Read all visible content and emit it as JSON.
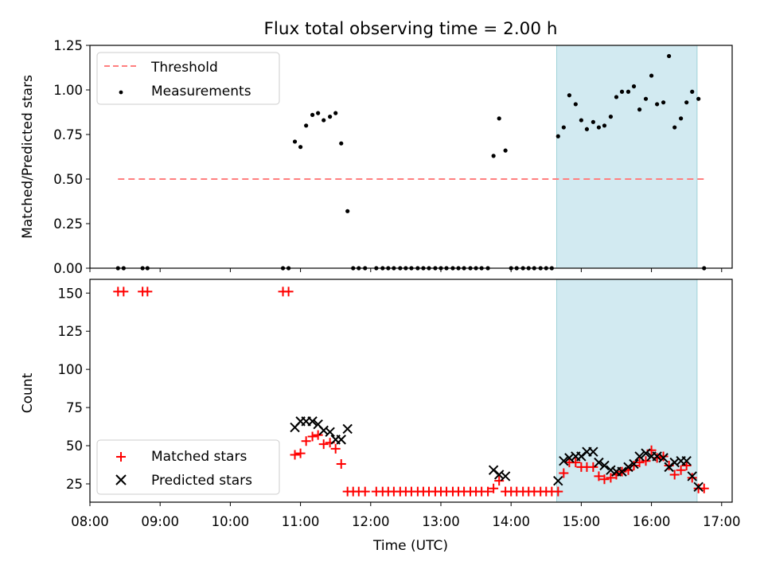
{
  "figure_title": "Flux total observing time = 2.00 h",
  "colors": {
    "threshold": "#ff7f7f",
    "measurement": "#000000",
    "matched": "#ff0000",
    "predicted": "#000000",
    "shade": "#add8e6"
  },
  "chart_data": [
    {
      "type": "scatter",
      "name": "ratio",
      "title": "Flux total observing time = 2.00 h",
      "xlabel": "",
      "ylabel": "Matched/Predicted stars",
      "x_units": "hours UTC (decimal)",
      "xlim": [
        8.0,
        17.15
      ],
      "ylim": [
        0.0,
        1.25
      ],
      "yticks": [
        0.0,
        0.25,
        0.5,
        0.75,
        1.0,
        1.25
      ],
      "ytick_labels": [
        "0.00",
        "0.25",
        "0.50",
        "0.75",
        "1.00",
        "1.25"
      ],
      "shaded_region": [
        14.65,
        16.65
      ],
      "threshold": {
        "label": "Threshold",
        "y": 0.5,
        "x_range": [
          8.4,
          16.75
        ]
      },
      "legend": {
        "location": "top-left",
        "entries": [
          "Threshold",
          "Measurements"
        ]
      },
      "series": [
        {
          "name": "Measurements",
          "points": [
            [
              8.4,
              0
            ],
            [
              8.48,
              0
            ],
            [
              8.75,
              0
            ],
            [
              8.82,
              0
            ],
            [
              10.75,
              0
            ],
            [
              10.83,
              0
            ],
            [
              10.92,
              0.71
            ],
            [
              11.0,
              0.68
            ],
            [
              11.08,
              0.8
            ],
            [
              11.17,
              0.86
            ],
            [
              11.25,
              0.87
            ],
            [
              11.33,
              0.83
            ],
            [
              11.42,
              0.85
            ],
            [
              11.5,
              0.87
            ],
            [
              11.58,
              0.7
            ],
            [
              11.67,
              0.32
            ],
            [
              11.75,
              0
            ],
            [
              11.83,
              0
            ],
            [
              11.92,
              0
            ],
            [
              12.08,
              0
            ],
            [
              12.17,
              0
            ],
            [
              12.25,
              0
            ],
            [
              12.33,
              0
            ],
            [
              12.42,
              0
            ],
            [
              12.5,
              0
            ],
            [
              12.58,
              0
            ],
            [
              12.67,
              0
            ],
            [
              12.75,
              0
            ],
            [
              12.83,
              0
            ],
            [
              12.92,
              0
            ],
            [
              13.0,
              0
            ],
            [
              13.08,
              0
            ],
            [
              13.17,
              0
            ],
            [
              13.25,
              0
            ],
            [
              13.33,
              0
            ],
            [
              13.42,
              0
            ],
            [
              13.5,
              0
            ],
            [
              13.58,
              0
            ],
            [
              13.67,
              0
            ],
            [
              13.75,
              0.63
            ],
            [
              13.83,
              0.84
            ],
            [
              13.92,
              0.66
            ],
            [
              14.0,
              0
            ],
            [
              14.08,
              0
            ],
            [
              14.17,
              0
            ],
            [
              14.25,
              0
            ],
            [
              14.33,
              0
            ],
            [
              14.42,
              0
            ],
            [
              14.5,
              0
            ],
            [
              14.58,
              0
            ],
            [
              14.67,
              0.74
            ],
            [
              14.75,
              0.79
            ],
            [
              14.83,
              0.97
            ],
            [
              14.92,
              0.92
            ],
            [
              15.0,
              0.83
            ],
            [
              15.08,
              0.78
            ],
            [
              15.17,
              0.82
            ],
            [
              15.25,
              0.79
            ],
            [
              15.33,
              0.8
            ],
            [
              15.42,
              0.85
            ],
            [
              15.5,
              0.96
            ],
            [
              15.58,
              0.99
            ],
            [
              15.67,
              0.99
            ],
            [
              15.75,
              1.02
            ],
            [
              15.83,
              0.89
            ],
            [
              15.92,
              0.95
            ],
            [
              16.0,
              1.08
            ],
            [
              16.08,
              0.92
            ],
            [
              16.17,
              0.93
            ],
            [
              16.25,
              1.19
            ],
            [
              16.33,
              0.79
            ],
            [
              16.42,
              0.84
            ],
            [
              16.5,
              0.93
            ],
            [
              16.58,
              0.99
            ],
            [
              16.67,
              0.95
            ],
            [
              16.75,
              0
            ]
          ]
        }
      ]
    },
    {
      "type": "scatter",
      "name": "counts",
      "title": "",
      "xlabel": "Time (UTC)",
      "ylabel": "Count",
      "x_units": "hours UTC (decimal)",
      "xlim": [
        8.0,
        17.15
      ],
      "ylim": [
        13,
        159
      ],
      "yticks": [
        25,
        50,
        75,
        100,
        125,
        150
      ],
      "ytick_labels": [
        "25",
        "50",
        "75",
        "100",
        "125",
        "150"
      ],
      "xticks": [
        8,
        9,
        10,
        11,
        12,
        13,
        14,
        15,
        16,
        17
      ],
      "xtick_labels": [
        "08:00",
        "09:00",
        "10:00",
        "11:00",
        "12:00",
        "13:00",
        "14:00",
        "15:00",
        "16:00",
        "17:00"
      ],
      "shaded_region": [
        14.65,
        16.65
      ],
      "legend": {
        "location": "bottom-left",
        "entries": [
          "Matched stars",
          "Predicted stars"
        ]
      },
      "series": [
        {
          "name": "Matched stars",
          "marker": "plus",
          "points": [
            [
              8.4,
              151
            ],
            [
              8.48,
              151
            ],
            [
              8.75,
              151
            ],
            [
              8.82,
              151
            ],
            [
              10.75,
              151
            ],
            [
              10.83,
              151
            ],
            [
              10.92,
              44
            ],
            [
              11.0,
              45
            ],
            [
              11.08,
              53
            ],
            [
              11.17,
              56
            ],
            [
              11.25,
              57
            ],
            [
              11.33,
              51
            ],
            [
              11.42,
              52
            ],
            [
              11.5,
              48
            ],
            [
              11.58,
              38
            ],
            [
              11.67,
              20
            ],
            [
              11.75,
              20
            ],
            [
              11.83,
              20
            ],
            [
              11.92,
              20
            ],
            [
              12.08,
              20
            ],
            [
              12.17,
              20
            ],
            [
              12.25,
              20
            ],
            [
              12.33,
              20
            ],
            [
              12.42,
              20
            ],
            [
              12.5,
              20
            ],
            [
              12.58,
              20
            ],
            [
              12.67,
              20
            ],
            [
              12.75,
              20
            ],
            [
              12.83,
              20
            ],
            [
              12.92,
              20
            ],
            [
              13.0,
              20
            ],
            [
              13.08,
              20
            ],
            [
              13.17,
              20
            ],
            [
              13.25,
              20
            ],
            [
              13.33,
              20
            ],
            [
              13.42,
              20
            ],
            [
              13.5,
              20
            ],
            [
              13.58,
              20
            ],
            [
              13.67,
              20
            ],
            [
              13.75,
              22
            ],
            [
              13.83,
              27
            ],
            [
              13.92,
              20
            ],
            [
              14.0,
              20
            ],
            [
              14.08,
              20
            ],
            [
              14.17,
              20
            ],
            [
              14.25,
              20
            ],
            [
              14.33,
              20
            ],
            [
              14.42,
              20
            ],
            [
              14.5,
              20
            ],
            [
              14.58,
              20
            ],
            [
              14.67,
              20
            ],
            [
              14.75,
              32
            ],
            [
              14.83,
              39
            ],
            [
              14.92,
              39
            ],
            [
              15.0,
              36
            ],
            [
              15.08,
              36
            ],
            [
              15.17,
              36
            ],
            [
              15.25,
              30
            ],
            [
              15.33,
              28
            ],
            [
              15.42,
              29
            ],
            [
              15.5,
              31
            ],
            [
              15.58,
              33
            ],
            [
              15.67,
              34
            ],
            [
              15.75,
              37
            ],
            [
              15.83,
              39
            ],
            [
              15.92,
              40
            ],
            [
              16.0,
              47
            ],
            [
              16.08,
              42
            ],
            [
              16.17,
              43
            ],
            [
              16.25,
              37
            ],
            [
              16.33,
              31
            ],
            [
              16.42,
              34
            ],
            [
              16.5,
              37
            ],
            [
              16.58,
              29
            ],
            [
              16.67,
              22
            ],
            [
              16.75,
              22
            ]
          ]
        },
        {
          "name": "Predicted stars",
          "marker": "x",
          "points": [
            [
              10.92,
              62
            ],
            [
              11.0,
              66
            ],
            [
              11.08,
              66
            ],
            [
              11.17,
              66
            ],
            [
              11.25,
              64
            ],
            [
              11.33,
              60
            ],
            [
              11.42,
              59
            ],
            [
              11.5,
              54
            ],
            [
              11.58,
              54
            ],
            [
              11.67,
              61
            ],
            [
              13.75,
              34
            ],
            [
              13.83,
              31
            ],
            [
              13.92,
              30
            ],
            [
              14.67,
              27
            ],
            [
              14.75,
              40
            ],
            [
              14.83,
              42
            ],
            [
              14.92,
              43
            ],
            [
              15.0,
              43
            ],
            [
              15.08,
              46
            ],
            [
              15.17,
              46
            ],
            [
              15.25,
              39
            ],
            [
              15.33,
              37
            ],
            [
              15.42,
              34
            ],
            [
              15.5,
              33
            ],
            [
              15.58,
              33
            ],
            [
              15.67,
              36
            ],
            [
              15.75,
              38
            ],
            [
              15.83,
              43
            ],
            [
              15.92,
              45
            ],
            [
              16.0,
              43
            ],
            [
              16.08,
              43
            ],
            [
              16.17,
              42
            ],
            [
              16.25,
              36
            ],
            [
              16.33,
              39
            ],
            [
              16.42,
              40
            ],
            [
              16.5,
              40
            ],
            [
              16.58,
              30
            ],
            [
              16.67,
              23
            ]
          ]
        }
      ]
    }
  ]
}
